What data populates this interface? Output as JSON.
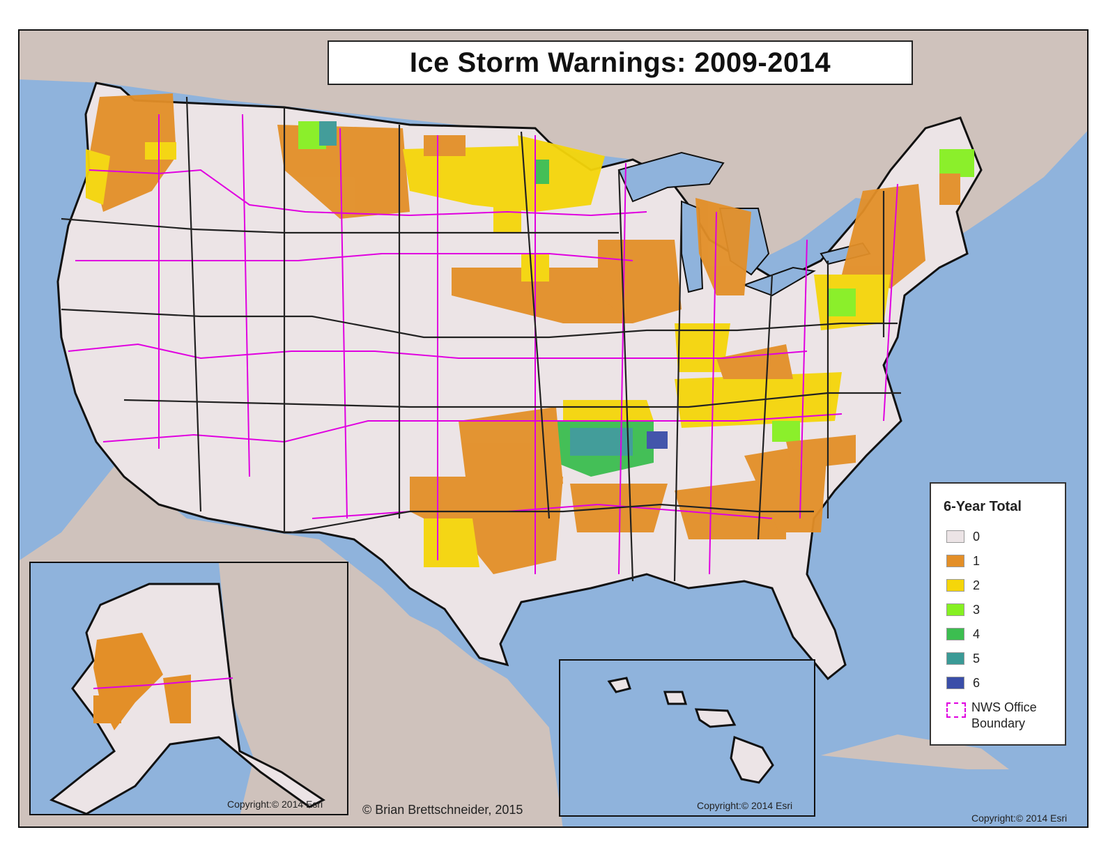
{
  "title": "Ice Storm Warnings: 2009-2014",
  "credit": "© Brian Brettschneider, 2015",
  "copyrights": {
    "alaska": "Copyright:© 2014 Esri",
    "hawaii": "Copyright:© 2014 Esri",
    "main": "Copyright:© 2014 Esri"
  },
  "legend": {
    "title": "6-Year Total",
    "items": [
      {
        "label": "0",
        "color": "#ece4e6"
      },
      {
        "label": "1",
        "color": "#e38f28"
      },
      {
        "label": "2",
        "color": "#f5d60a"
      },
      {
        "label": "3",
        "color": "#86f022"
      },
      {
        "label": "4",
        "color": "#3cbe50"
      },
      {
        "label": "5",
        "color": "#3a9a96"
      },
      {
        "label": "6",
        "color": "#3a4ea8"
      }
    ],
    "boundary_label": "NWS Office Boundary",
    "boundary_color": "#e000e0"
  },
  "colors": {
    "water": "#8fb3dc",
    "land_outside": "#cfc2bc",
    "us_land": "#ece4e6"
  }
}
